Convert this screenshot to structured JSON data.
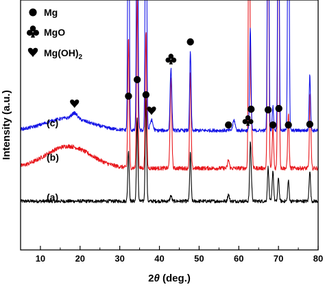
{
  "chart_data": {
    "type": "line",
    "title": "",
    "xlabel": "2θ (deg.)",
    "xlabel_parts": {
      "symbol": "2",
      "theta": "θ",
      "unit": " (deg.)"
    },
    "ylabel": "Intensity (a.u.)",
    "xlim": [
      5,
      80
    ],
    "x_ticks": [
      10,
      20,
      30,
      40,
      50,
      60,
      70,
      80
    ],
    "y_ticks_labeled": false,
    "grid": false,
    "colors": {
      "a": "#000000",
      "b": "#e8161b",
      "c": "#1414e6"
    },
    "legend": {
      "placement": "top-left",
      "entries": [
        {
          "marker": "circle",
          "label": "Mg"
        },
        {
          "marker": "club",
          "label": "MgO"
        },
        {
          "marker": "heart",
          "label": "Mg(OH)",
          "subscript": "2"
        }
      ]
    },
    "series": [
      {
        "name": "(a)",
        "color": "#000000",
        "baseline": 293,
        "hump": {
          "peak": 0,
          "center": 20,
          "width": 10
        },
        "noise": 2.5,
        "peaks": [
          [
            32.2,
            75,
            0.25
          ],
          [
            34.4,
            120,
            0.25
          ],
          [
            36.6,
            150,
            0.25
          ],
          [
            42.9,
            8,
            0.3
          ],
          [
            47.8,
            70,
            0.25
          ],
          [
            57.4,
            10,
            0.3
          ],
          [
            62.9,
            70,
            0.25
          ],
          [
            63.1,
            25,
            0.3
          ],
          [
            67.4,
            50,
            0.25
          ],
          [
            68.6,
            45,
            0.25
          ],
          [
            70.0,
            35,
            0.25
          ],
          [
            72.5,
            30,
            0.25
          ],
          [
            77.9,
            45,
            0.25
          ]
        ]
      },
      {
        "name": "(b)",
        "color": "#e8161b",
        "baseline": 245,
        "hump": {
          "peak": 32,
          "center": 17,
          "width": 8
        },
        "noise": 3,
        "peaks": [
          [
            32.2,
            190,
            0.25
          ],
          [
            34.4,
            250,
            0.25
          ],
          [
            36.6,
            200,
            0.25
          ],
          [
            42.9,
            130,
            0.3
          ],
          [
            47.8,
            140,
            0.25
          ],
          [
            57.4,
            12,
            0.3
          ],
          [
            62.6,
            500,
            0.25
          ],
          [
            63.1,
            90,
            0.3
          ],
          [
            67.4,
            500,
            0.25
          ],
          [
            68.6,
            60,
            0.25
          ],
          [
            70.0,
            500,
            0.25
          ],
          [
            72.5,
            80,
            0.25
          ],
          [
            78.0,
            110,
            0.25
          ]
        ]
      },
      {
        "name": "(c)",
        "color": "#1414e6",
        "baseline": 190,
        "hump": {
          "peak": 18,
          "center": 17,
          "width": 8
        },
        "noise": 2.5,
        "peaks": [
          [
            18.6,
            8,
            1.0
          ],
          [
            32.2,
            500,
            0.25
          ],
          [
            34.4,
            500,
            0.25
          ],
          [
            36.6,
            500,
            0.25
          ],
          [
            38.0,
            15,
            0.5
          ],
          [
            42.9,
            90,
            0.3
          ],
          [
            47.8,
            115,
            0.25
          ],
          [
            58.8,
            15,
            0.4
          ],
          [
            62.9,
            150,
            0.25
          ],
          [
            67.4,
            500,
            0.25
          ],
          [
            68.6,
            35,
            0.25
          ],
          [
            70.0,
            500,
            0.25
          ],
          [
            72.5,
            500,
            0.25
          ],
          [
            77.9,
            80,
            0.25
          ]
        ]
      }
    ],
    "phase_markers": [
      {
        "phase": "Mg",
        "marker": "circle",
        "x": 32.2
      },
      {
        "phase": "Mg",
        "marker": "circle",
        "x": 34.4
      },
      {
        "phase": "Mg",
        "marker": "circle",
        "x": 36.6
      },
      {
        "phase": "Mg",
        "marker": "circle",
        "x": 47.8
      },
      {
        "phase": "Mg",
        "marker": "circle",
        "x": 57.4
      },
      {
        "phase": "Mg",
        "marker": "circle",
        "x": 63.1
      },
      {
        "phase": "Mg",
        "marker": "circle",
        "x": 67.4
      },
      {
        "phase": "Mg",
        "marker": "circle",
        "x": 68.6
      },
      {
        "phase": "Mg",
        "marker": "circle",
        "x": 70.1
      },
      {
        "phase": "Mg",
        "marker": "circle",
        "x": 72.5
      },
      {
        "phase": "Mg",
        "marker": "circle",
        "x": 77.9
      },
      {
        "phase": "MgO",
        "marker": "club",
        "x": 42.9
      },
      {
        "phase": "MgO",
        "marker": "club",
        "x": 62.3
      },
      {
        "phase": "Mg(OH)2",
        "marker": "heart",
        "x": 18.6
      },
      {
        "phase": "Mg(OH)2",
        "marker": "heart",
        "x": 38.0
      }
    ]
  }
}
